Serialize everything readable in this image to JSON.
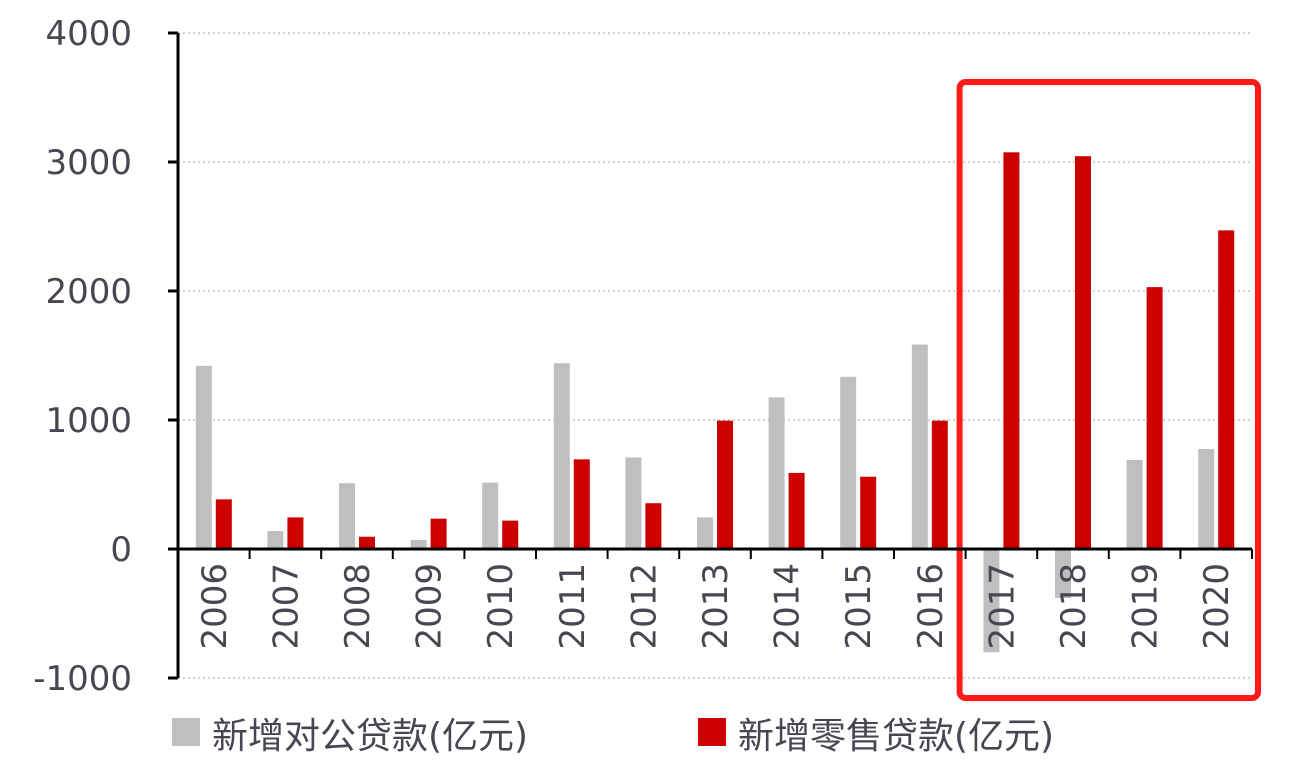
{
  "chart_data": {
    "type": "bar",
    "categories": [
      "2006",
      "2007",
      "2008",
      "2009",
      "2010",
      "2011",
      "2012",
      "2013",
      "2014",
      "2015",
      "2016",
      "2017",
      "2018",
      "2019",
      "2020"
    ],
    "series": [
      {
        "name": "新增对公贷款(亿元)",
        "color": "#bfbfbf",
        "values": [
          1420,
          140,
          510,
          70,
          515,
          1440,
          710,
          245,
          1175,
          1335,
          1585,
          -800,
          -380,
          690,
          775
        ]
      },
      {
        "name": "新增零售贷款(亿元)",
        "color": "#cc0000",
        "values": [
          385,
          245,
          95,
          235,
          220,
          695,
          355,
          995,
          590,
          560,
          995,
          3075,
          3045,
          2030,
          2470
        ]
      }
    ],
    "ylim": [
      -1000,
      4000
    ],
    "yticks": [
      "-1000",
      "0",
      "1000",
      "2000",
      "3000",
      "4000"
    ],
    "grid": true,
    "legend": "bottom",
    "highlight": {
      "from_category": "2017",
      "to_category": "2020",
      "color": "#ff1a1a"
    }
  }
}
